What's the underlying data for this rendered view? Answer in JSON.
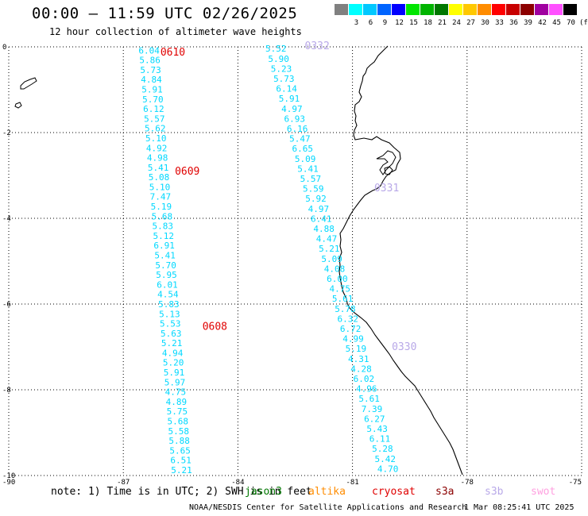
{
  "header": {
    "title": "00:00 – 11:59 UTC 02/26/2025",
    "subtitle": "12 hour collection of altimeter wave heights"
  },
  "legend": {
    "unit": "(ft)",
    "bins": [
      {
        "label": "",
        "color": "#808080"
      },
      {
        "label": "3",
        "color": "#00ffff"
      },
      {
        "label": "6",
        "color": "#00c8ff"
      },
      {
        "label": "9",
        "color": "#0064ff"
      },
      {
        "label": "12",
        "color": "#0000ff"
      },
      {
        "label": "15",
        "color": "#00e600"
      },
      {
        "label": "18",
        "color": "#00b400"
      },
      {
        "label": "21",
        "color": "#007800"
      },
      {
        "label": "24",
        "color": "#ffff00"
      },
      {
        "label": "27",
        "color": "#ffc800"
      },
      {
        "label": "30",
        "color": "#ff8c00"
      },
      {
        "label": "33",
        "color": "#ff0000"
      },
      {
        "label": "36",
        "color": "#c80000"
      },
      {
        "label": "39",
        "color": "#8c0000"
      },
      {
        "label": "42",
        "color": "#a000a0"
      },
      {
        "label": "45",
        "color": "#ff50ff"
      },
      {
        "label": "70",
        "color": "#000000"
      }
    ]
  },
  "axes": {
    "lon_labels": [
      "-90",
      "-87",
      "-84",
      "-81",
      "-78",
      "-75"
    ],
    "lat_labels": [
      "0",
      "-2",
      "-4",
      "-6",
      "-8",
      "-10"
    ],
    "lon_range": [
      -90,
      -75
    ],
    "lat_range": [
      -10,
      0
    ],
    "grid": "dotted"
  },
  "passes": [
    {
      "label": "0610",
      "color": "#e00000",
      "label_lon": -86.03,
      "label_lat": -0.11
    },
    {
      "label": "0609",
      "color": "#e00000",
      "label_lon": -85.65,
      "label_lat": -2.89
    },
    {
      "label": "0608",
      "color": "#e00000",
      "label_lon": -84.93,
      "label_lat": -6.51
    },
    {
      "label": "0332",
      "color": "#b8a8e8",
      "label_lon": -82.25,
      "label_lat": 0.04
    },
    {
      "label": "0331",
      "color": "#b8a8e8",
      "label_lon": -80.43,
      "label_lat": -3.28
    },
    {
      "label": "0330",
      "color": "#b8a8e8",
      "label_lon": -79.97,
      "label_lat": -6.98
    }
  ],
  "tracks": [
    {
      "color": "#00d8ff",
      "start": {
        "lon": -86.6,
        "lat": -0.08
      },
      "end": {
        "lon": -85.75,
        "lat": -9.87
      },
      "values": [
        "6.04",
        "5.86",
        "5.73",
        "4.84",
        "5.91",
        "5.70",
        "6.12",
        "5.57",
        "5.62",
        "5.10",
        "4.92",
        "4.98",
        "5.41",
        "5.08",
        "5.10",
        "7.47",
        "5.19",
        "5.68",
        "5.83",
        "5.12",
        "6.91",
        "5.41",
        "5.70",
        "5.95",
        "6.01",
        "4.54",
        "5.83",
        "5.13",
        "5.53",
        "5.63",
        "5.21",
        "4.94",
        "5.20",
        "5.91",
        "5.97",
        "4.75",
        "4.89",
        "5.75",
        "5.68",
        "5.58",
        "5.88",
        "5.65",
        "6.51",
        "5.21"
      ]
    },
    {
      "color": "#00d8ff",
      "start": {
        "lon": -83.28,
        "lat": -0.04
      },
      "end": {
        "lon": -80.35,
        "lat": -9.84
      },
      "values": [
        "5.52",
        "5.90",
        "5.23",
        "5.73",
        "6.14",
        "5.91",
        "4.97",
        "6.93",
        "6.16",
        "5.47",
        "6.65",
        "5.09",
        "5.41",
        "5.57",
        "5.59",
        "5.92",
        "4.97",
        "6.41",
        "4.88",
        "4.47",
        "5.21",
        "5.09",
        "4.08",
        "6.00",
        "4.75",
        "5.61",
        "5.78",
        "6.32",
        "6.72",
        "4.99",
        "5.19",
        "4.31",
        "4.28",
        "6.02",
        "4.96",
        "5.61",
        "7.39",
        "6.27",
        "5.43",
        "6.11",
        "5.28",
        "5.42",
        "4.70"
      ]
    }
  ],
  "footer": {
    "note": "note: 1) Time is in UTC; 2) SWH is in feet",
    "satellites": [
      {
        "name": "jason3",
        "color": "#007800"
      },
      {
        "name": "altika",
        "color": "#ff8c00"
      },
      {
        "name": "cryosat",
        "color": "#e00000"
      },
      {
        "name": "s3a",
        "color": "#8b0000"
      },
      {
        "name": "s3b",
        "color": "#b8a8e8"
      },
      {
        "name": "swot",
        "color": "#ffa0e0"
      }
    ],
    "credit": "NOAA/NESDIS Center for Satellite Applications and Research",
    "timestamp": "1 Mar 08:25:41 UTC 2025"
  }
}
